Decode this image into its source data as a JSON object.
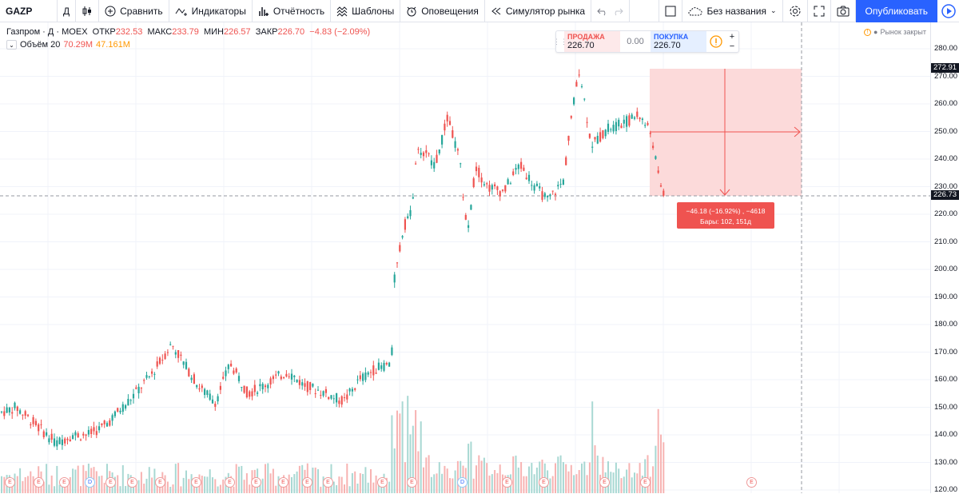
{
  "toolbar": {
    "symbol": "GAZP",
    "interval": "Д",
    "compare": "Сравнить",
    "indicators": "Индикаторы",
    "financials": "Отчётность",
    "templates": "Шаблоны",
    "alerts": "Оповещения",
    "replay": "Симулятор рынка",
    "layout_name": "Без названия",
    "publish": "Опубликовать"
  },
  "legend": {
    "title": "Газпром · Д · MOEX",
    "open_label": "ОТКР",
    "open": "232.53",
    "high_label": "МАКС",
    "high": "233.79",
    "low_label": "МИН",
    "low": "226.57",
    "close_label": "ЗАКР",
    "close": "226.70",
    "change": "−4.83 (−2.09%)",
    "volume_label": "Объём 20",
    "volume": "70.29M",
    "volume_ma": "47.161M"
  },
  "trade": {
    "sell_label": "ПРОДАЖА",
    "sell_price": "226.70",
    "spread": "0.00",
    "buy_label": "ПОКУПКА",
    "buy_price": "226.70",
    "plus": "+",
    "minus": "−"
  },
  "market_status": "Рынок закрыт",
  "price_axis": {
    "ticks": [
      "280.00",
      "270.00",
      "260.00",
      "250.00",
      "240.00",
      "230.00",
      "220.00",
      "210.00",
      "200.00",
      "190.00",
      "180.00",
      "170.00",
      "160.00",
      "150.00",
      "140.00",
      "130.00",
      "120.00"
    ],
    "top_tag": "272.91",
    "current_tag": "226.73"
  },
  "measure": {
    "line1": "−46.18 (−16.92%) , −4618",
    "line2": "Бары: 102, 151д"
  },
  "events": [
    "E",
    "E",
    "E",
    "D",
    "E",
    "E",
    "E",
    "E",
    "E",
    "D",
    "E",
    "E",
    "E",
    "E"
  ],
  "colors": {
    "up": "#26a69a",
    "down": "#ef5350",
    "accent": "#2962ff",
    "measure_fill": "#fcdada"
  }
}
